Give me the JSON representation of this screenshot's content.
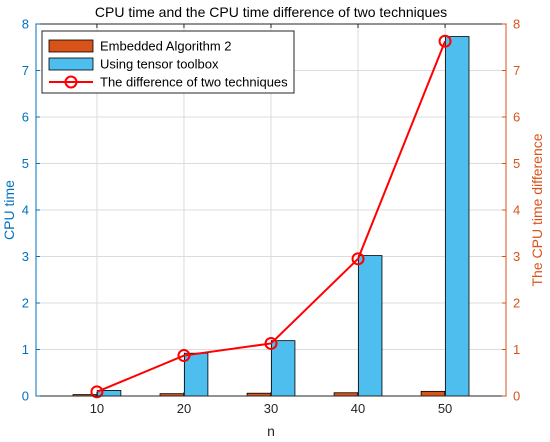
{
  "chart_data": {
    "type": "bar",
    "title": "CPU time and the CPU time difference of two techniques",
    "xlabel": "n",
    "ylabel_left": "CPU time",
    "ylabel_right": "The CPU time difference",
    "categories": [
      10,
      20,
      30,
      40,
      50
    ],
    "xlim": [
      3,
      57
    ],
    "xticks": [
      10,
      20,
      30,
      40,
      50
    ],
    "ylim_left": [
      0,
      8
    ],
    "yticks_left": [
      0,
      1,
      2,
      3,
      4,
      5,
      6,
      7,
      8
    ],
    "ylim_right": [
      0,
      8
    ],
    "yticks_right": [
      0,
      1,
      2,
      3,
      4,
      5,
      6,
      7,
      8
    ],
    "grid": true,
    "legend_position": "top-left",
    "series": [
      {
        "name": "Embedded Algorithm 2",
        "type": "bar",
        "axis": "left",
        "color": "#D95319",
        "values": [
          0.03,
          0.05,
          0.06,
          0.07,
          0.1
        ]
      },
      {
        "name": "Using tensor toolbox",
        "type": "bar",
        "axis": "left",
        "color": "#4DBEEE",
        "values": [
          0.12,
          0.92,
          1.19,
          3.02,
          7.73
        ]
      },
      {
        "name": "The difference of two techniques",
        "type": "line",
        "axis": "right",
        "color": "#FF0000",
        "marker": "circle",
        "x": [
          10,
          20,
          30,
          40,
          50
        ],
        "values": [
          0.09,
          0.87,
          1.13,
          2.95,
          7.63
        ]
      }
    ],
    "colors": {
      "left_axis": "#0072BD",
      "right_axis": "#D95319",
      "grid": "#DCDCDC"
    }
  }
}
